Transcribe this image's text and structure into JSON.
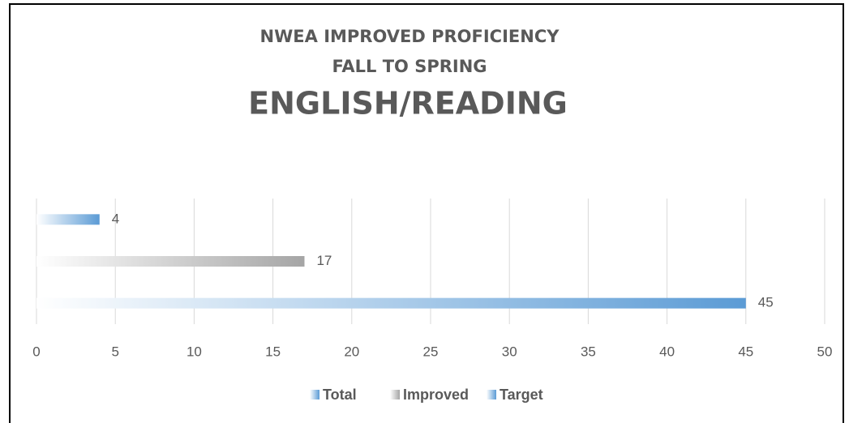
{
  "chart_data": {
    "type": "bar",
    "orientation": "horizontal",
    "gradient": true,
    "title": [
      "NWEA IMPROVED PROFICIENCY",
      "FALL TO SPRING",
      "ENGLISH/READING"
    ],
    "categories": [
      null
    ],
    "series": [
      {
        "name": "Total",
        "color": "#5b9bd5",
        "values": [
          45
        ]
      },
      {
        "name": "Improved",
        "color": "#a5a5a5",
        "values": [
          17
        ]
      },
      {
        "name": "Target",
        "color": "#5b9bd5",
        "values": [
          4
        ]
      }
    ],
    "xlim": [
      0,
      50
    ],
    "xticks": [
      0,
      5,
      10,
      15,
      20,
      25,
      30,
      35,
      40,
      45,
      50
    ],
    "grid": true,
    "legend": "bottom"
  }
}
